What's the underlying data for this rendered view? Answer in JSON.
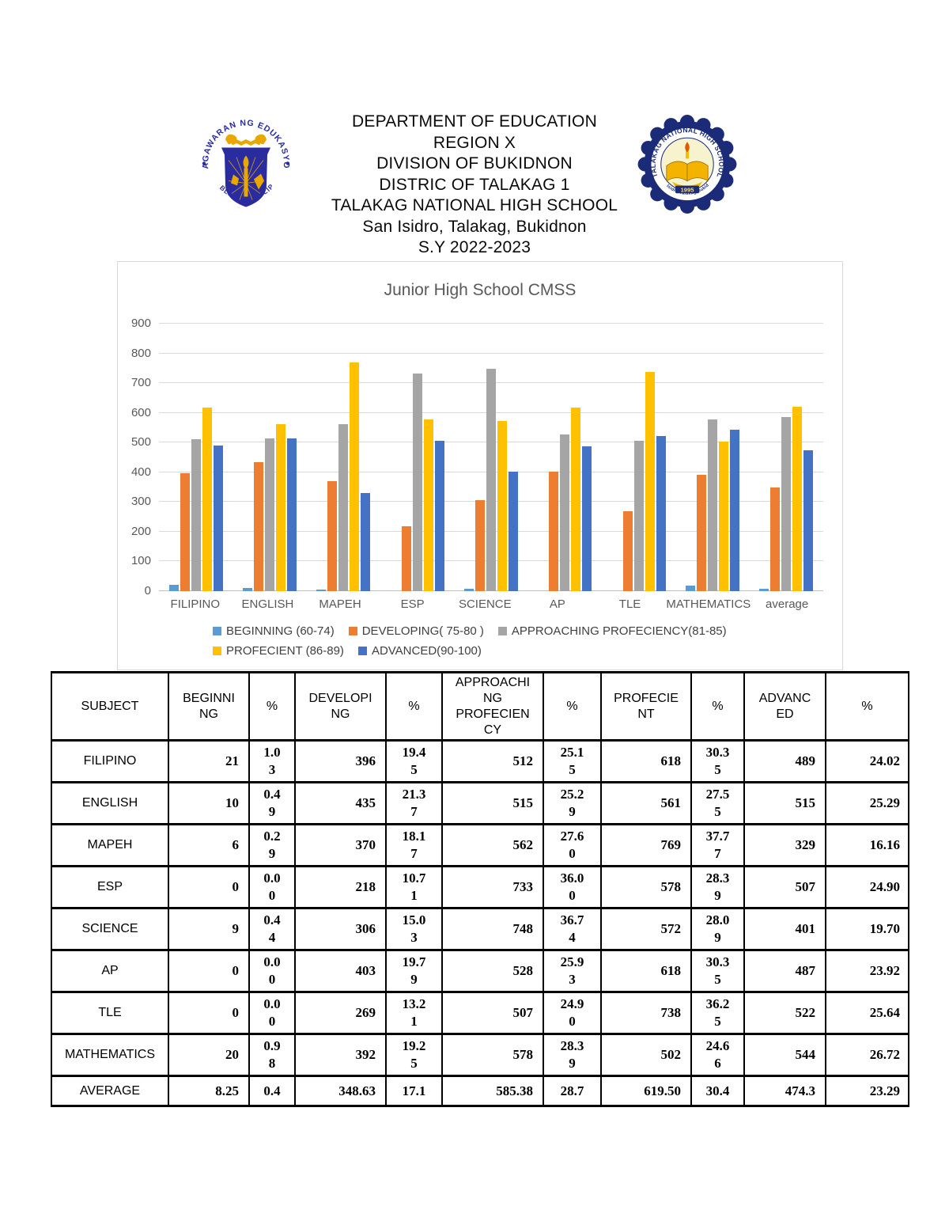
{
  "header": {
    "lines": [
      "DEPARTMENT OF EDUCATION",
      "REGION X",
      "DIVISION OF BUKIDNON",
      "DISTRIC OF TALAKAG 1",
      "TALAKAG NATIONAL HIGH SCHOOL",
      "San Isidro, Talakag, Bukidnon",
      "S.Y 2022-2023"
    ],
    "left_logo": {
      "top_text": "KAGAWARAN NG EDUKASYON",
      "bottom_text": "REPUBLIKA NG PILIPINAS"
    },
    "right_logo": {
      "top_text": "TALAKAG NATIONAL HIGH SCHOOL",
      "bottom_text": "San Isidro Talakag Bukidnon",
      "year": "1995"
    }
  },
  "chart_data": {
    "type": "bar",
    "title": "Junior High School CMSS",
    "categories": [
      "FILIPINO",
      "ENGLISH",
      "MAPEH",
      "ESP",
      "SCIENCE",
      "AP",
      "TLE",
      "MATHEMATICS",
      "average"
    ],
    "series": [
      {
        "name": "BEGINNING (60-74)",
        "color": "#5B9BD5",
        "values": [
          21,
          10,
          6,
          0,
          9,
          0,
          0,
          20,
          8.25
        ]
      },
      {
        "name": "DEVELOPING( 75-80 )",
        "color": "#ED7D31",
        "values": [
          396,
          435,
          370,
          218,
          306,
          403,
          269,
          392,
          348.63
        ]
      },
      {
        "name": "APPROACHING PROFECIENCY(81-85)",
        "color": "#A5A5A5",
        "values": [
          512,
          515,
          562,
          733,
          748,
          528,
          507,
          578,
          585.38
        ]
      },
      {
        "name": "PROFECIENT (86-89)",
        "color": "#FFC000",
        "values": [
          618,
          561,
          769,
          578,
          572,
          618,
          738,
          502,
          619.5
        ]
      },
      {
        "name": "ADVANCED(90-100)",
        "color": "#4472C4",
        "values": [
          489,
          515,
          329,
          507,
          401,
          487,
          522,
          544,
          474.3
        ]
      }
    ],
    "ylim": [
      0,
      900
    ],
    "ytick_step": 100,
    "grid": true,
    "legend_position": "bottom"
  },
  "table": {
    "headers": [
      "SUBJECT",
      "BEGINNI\nNG",
      "%",
      "DEVELOPI\nNG",
      "%",
      "APPROACHI\nNG\nPROFECIEN\nCY",
      "%",
      "PROFECIE\nNT",
      "%",
      "ADVANC\nED",
      "%"
    ],
    "rows": [
      {
        "subject": "FILIPINO",
        "cells": [
          "21",
          "1.0\n3",
          "396",
          "19.4\n5",
          "512",
          "25.1\n5",
          "618",
          "30.3\n5",
          "489",
          "24.02"
        ]
      },
      {
        "subject": "ENGLISH",
        "cells": [
          "10",
          "0.4\n9",
          "435",
          "21.3\n7",
          "515",
          "25.2\n9",
          "561",
          "27.5\n5",
          "515",
          "25.29"
        ]
      },
      {
        "subject": "MAPEH",
        "cells": [
          "6",
          "0.2\n9",
          "370",
          "18.1\n7",
          "562",
          "27.6\n0",
          "769",
          "37.7\n7",
          "329",
          "16.16"
        ]
      },
      {
        "subject": "ESP",
        "cells": [
          "0",
          "0.0\n0",
          "218",
          "10.7\n1",
          "733",
          "36.0\n0",
          "578",
          "28.3\n9",
          "507",
          "24.90"
        ]
      },
      {
        "subject": "SCIENCE",
        "cells": [
          "9",
          "0.4\n4",
          "306",
          "15.0\n3",
          "748",
          "36.7\n4",
          "572",
          "28.0\n9",
          "401",
          "19.70"
        ]
      },
      {
        "subject": "AP",
        "cells": [
          "0",
          "0.0\n0",
          "403",
          "19.7\n9",
          "528",
          "25.9\n3",
          "618",
          "30.3\n5",
          "487",
          "23.92"
        ]
      },
      {
        "subject": "TLE",
        "cells": [
          "0",
          "0.0\n0",
          "269",
          "13.2\n1",
          "507",
          "24.9\n0",
          "738",
          "36.2\n5",
          "522",
          "25.64"
        ]
      },
      {
        "subject": "MATHEMATICS",
        "cells": [
          "20",
          "0.9\n8",
          "392",
          "19.2\n5",
          "578",
          "28.3\n9",
          "502",
          "24.6\n6",
          "544",
          "26.72"
        ]
      },
      {
        "subject": "AVERAGE",
        "cells": [
          "8.25",
          "0.4",
          "348.63",
          "17.1",
          "585.38",
          "28.7",
          "619.50",
          "30.4",
          "474.3",
          "23.29"
        ]
      }
    ]
  }
}
